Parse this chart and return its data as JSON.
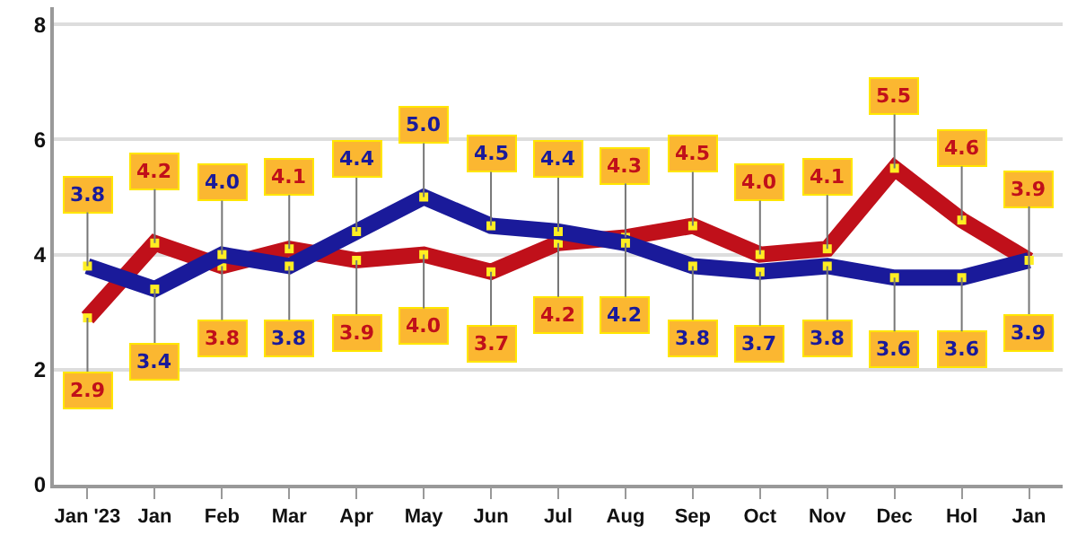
{
  "chart_data": {
    "type": "line",
    "categories": [
      "Jan '23",
      "Jan",
      "Feb",
      "Mar",
      "Apr",
      "May",
      "Jun",
      "Jul",
      "Aug",
      "Sep",
      "Oct",
      "Nov",
      "Dec",
      "Hol",
      "Jan"
    ],
    "series": [
      {
        "color": "#c0101a",
        "values": [
          2.9,
          4.2,
          3.8,
          4.1,
          3.9,
          4.0,
          3.7,
          4.2,
          4.3,
          4.5,
          4.0,
          4.1,
          5.5,
          4.6,
          3.9
        ],
        "value_labels": [
          "2.9",
          "4.2",
          "3.8",
          "4.1",
          "3.9",
          "4.0",
          "3.7",
          "4.2",
          "4.3",
          "4.5",
          "4.0",
          "4.1",
          "5.5",
          "4.6",
          "3.9"
        ]
      },
      {
        "color": "#1a1a9a",
        "values": [
          3.8,
          3.4,
          4.0,
          3.8,
          4.4,
          5.0,
          4.5,
          4.4,
          4.2,
          3.8,
          3.7,
          3.8,
          3.6,
          3.6,
          3.9
        ],
        "value_labels": [
          "3.8",
          "3.4",
          "4.0",
          "3.8",
          "4.4",
          "5.0",
          "4.5",
          "4.4",
          "4.2",
          "3.8",
          "3.7",
          "3.8",
          "3.6",
          "3.6",
          "3.9"
        ]
      }
    ],
    "ylim": [
      0,
      8.3
    ],
    "yticks": [
      0,
      2,
      4,
      6,
      8
    ],
    "grid": "y",
    "marker": "square",
    "line_style": "solid"
  }
}
